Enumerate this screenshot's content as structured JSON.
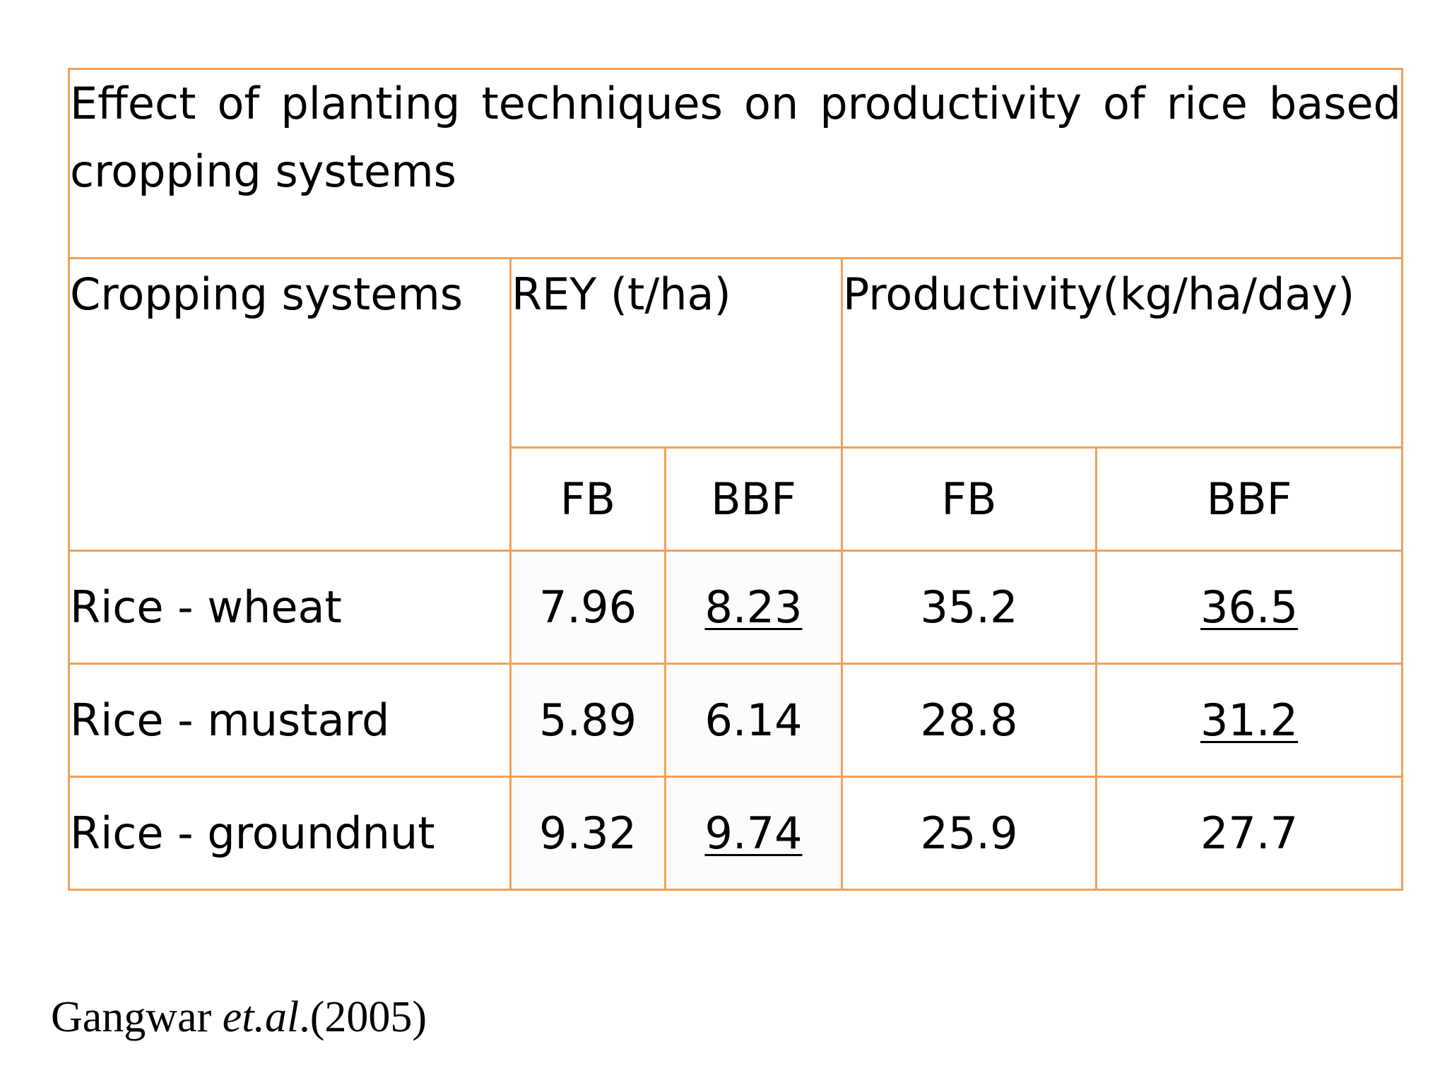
{
  "table": {
    "title": "Effect of planting techniques on productivity of rice based cropping systems",
    "headers": {
      "cropping_systems": "Cropping systems",
      "rey": "REY (t/ha)",
      "productivity": "Productivity(kg/ha/day)"
    },
    "subheaders": [
      "FB",
      "BBF",
      "FB",
      "BBF"
    ],
    "rows": [
      {
        "label": "Rice - wheat",
        "rey_fb": "7.96",
        "rey_bbf": "8.23",
        "prod_fb": "35.2",
        "prod_bbf": "36.5"
      },
      {
        "label": "Rice - mustard",
        "rey_fb": "5.89",
        "rey_bbf": "6.14",
        "prod_fb": "28.8",
        "prod_bbf": "31.2"
      },
      {
        "label": "Rice - groundnut",
        "rey_fb": "9.32",
        "rey_bbf": "9.74",
        "prod_fb": "25.9",
        "prod_bbf": "27.7"
      }
    ],
    "border_color": "#F0A15A"
  },
  "citation": {
    "author": "Gangwar ",
    "etal": "et.al",
    "year": ".(2005)"
  }
}
